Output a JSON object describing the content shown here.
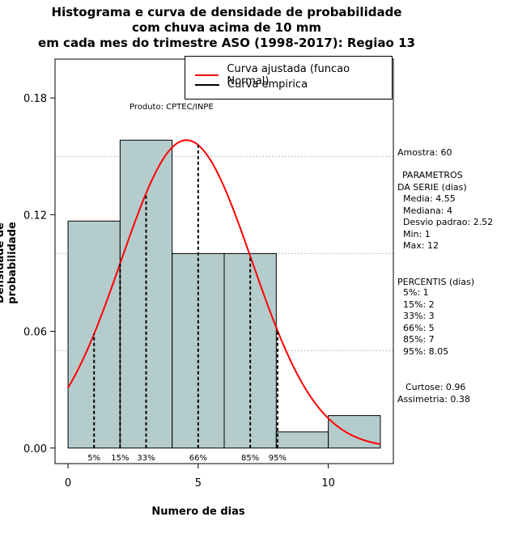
{
  "title_lines": [
    "Histograma e curva de densidade de probabilidade",
    "com chuva acima de 10 mm",
    "em cada mes do trimestre ASO (1998-2017): Regiao 13"
  ],
  "product_note": "Produto: CPTEC/INPE",
  "legend": {
    "fitted_label": "Curva ajustada (funcao Normal)",
    "empirical_label": "Curva empirica",
    "fitted_color": "#ff0000",
    "empirical_color": "#000000"
  },
  "side_panel": {
    "sample": "Amostra: 60",
    "params_title_1": "PARAMETROS",
    "params_title_2": "DA SERIE (dias)",
    "mean": "Media: 4.55",
    "median": "Mediana: 4",
    "sd": "Desvio padrao: 2.52",
    "min": "Min: 1",
    "max": "Max: 12",
    "percentiles_title": "PERCENTIS (dias)",
    "p5": "5%: 1",
    "p15": "15%: 2",
    "p33": "33%: 3",
    "p66": "66%: 5",
    "p85": "85%: 7",
    "p95": "95%: 8.05",
    "kurtosis": "Curtose: 0.96",
    "skewness": "Assimetria: 0.38"
  },
  "chart_data": {
    "type": "histogram",
    "xlabel": "Numero de dias",
    "ylabel": "Densidade de probabilidade",
    "xlim": [
      -0.5,
      12.5
    ],
    "ylim": [
      -0.008,
      0.2
    ],
    "xticks": [
      0,
      5,
      10
    ],
    "yticks": [
      0.0,
      0.06,
      0.12,
      0.18
    ],
    "ytick_labels": [
      "0.00",
      "0.06",
      "0.12",
      "0.18"
    ],
    "bar_color": "#b5cccc",
    "bins": [
      {
        "x0": 0,
        "x1": 2,
        "density": 0.1167
      },
      {
        "x0": 2,
        "x1": 4,
        "density": 0.1583
      },
      {
        "x0": 4,
        "x1": 6,
        "density": 0.1
      },
      {
        "x0": 6,
        "x1": 8,
        "density": 0.1
      },
      {
        "x0": 8,
        "x1": 10,
        "density": 0.0083
      },
      {
        "x0": 10,
        "x1": 12,
        "density": 0.0167
      }
    ],
    "normal_fit": {
      "mean": 4.55,
      "sd": 2.52,
      "x_range": [
        0,
        12
      ]
    },
    "percentile_lines": [
      {
        "label": "5%",
        "x": 1
      },
      {
        "label": "15%",
        "x": 2
      },
      {
        "label": "33%",
        "x": 3
      },
      {
        "label": "66%",
        "x": 5
      },
      {
        "label": "85%",
        "x": 7
      },
      {
        "label": "95%",
        "x": 8.05
      }
    ],
    "grid_y": [
      0.05,
      0.1,
      0.15
    ]
  }
}
